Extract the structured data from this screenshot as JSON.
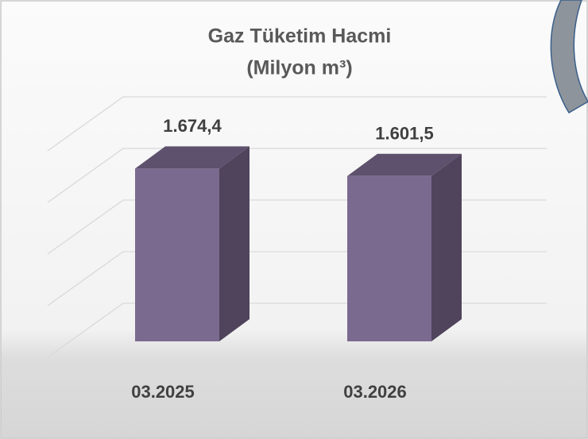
{
  "chart_data": {
    "type": "bar3d",
    "title": "Gaz Tüketim Hacmi",
    "subtitle": "(Milyon m³)",
    "categories": [
      "03.2025",
      "03.2026"
    ],
    "values": [
      1674.4,
      1601.5
    ],
    "value_labels": [
      "1.674,4",
      "1.601,5"
    ],
    "color": "#7b6a8f",
    "ylim": [
      0,
      2000
    ],
    "yticks": [
      0,
      500,
      1000,
      1500,
      2000
    ],
    "grid": true
  }
}
